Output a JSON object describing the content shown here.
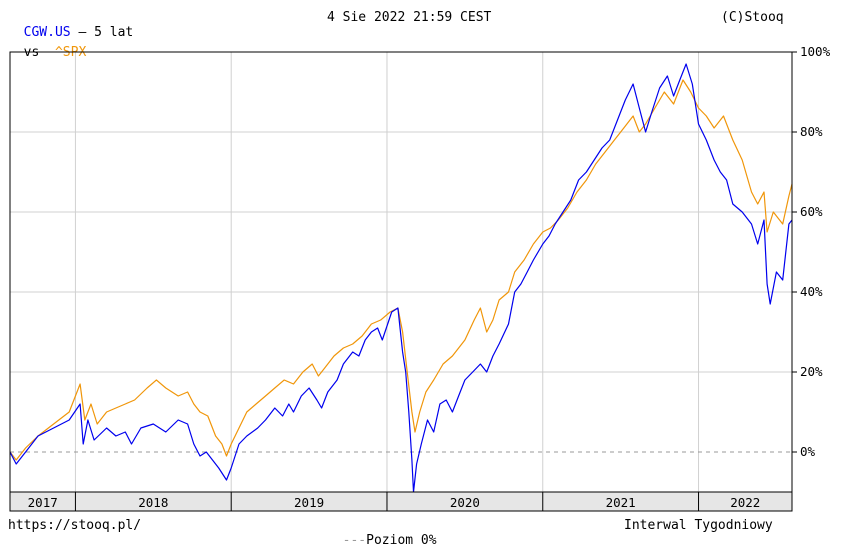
{
  "header": {
    "symbol": "CGW.US",
    "period": " – 5 lat",
    "vs": "vs",
    "benchmark": "^SPX",
    "datetime": "4 Sie 2022 21:59 CEST",
    "copyright": "(C)Stooq"
  },
  "footer": {
    "url": "https://stooq.pl/",
    "zero_dash": "---",
    "zero_label": "Poziom 0%",
    "interval": "Interwal Tygodniowy"
  },
  "colors": {
    "cgw": "#0000ee",
    "spx": "#f0960a",
    "grid": "#d0d0d0",
    "zero": "#999999"
  },
  "chart_data": {
    "type": "line",
    "ylim": [
      -10,
      100
    ],
    "y_ticks": [
      0,
      20,
      40,
      60,
      80,
      100
    ],
    "y_tick_labels": [
      "0%",
      "20%",
      "40%",
      "60%",
      "80%",
      "100%"
    ],
    "x_year_labels": [
      "2017",
      "2018",
      "2019",
      "2020",
      "2021",
      "2022"
    ],
    "x_year_boundaries": [
      2017.0,
      2018.0,
      2019.0,
      2020.0,
      2021.0,
      2022.0
    ],
    "xlim": [
      2017.58,
      2022.6
    ],
    "zero_line": 0,
    "grid": true,
    "series": [
      {
        "name": "CGW.US",
        "color": "#0000ee",
        "points": [
          [
            2017.58,
            0
          ],
          [
            2017.62,
            -3
          ],
          [
            2017.68,
            0
          ],
          [
            2017.76,
            4
          ],
          [
            2017.86,
            6
          ],
          [
            2017.96,
            8
          ],
          [
            2018.03,
            12
          ],
          [
            2018.05,
            2
          ],
          [
            2018.08,
            8
          ],
          [
            2018.12,
            3
          ],
          [
            2018.2,
            6
          ],
          [
            2018.26,
            4
          ],
          [
            2018.32,
            5
          ],
          [
            2018.36,
            2
          ],
          [
            2018.42,
            6
          ],
          [
            2018.5,
            7
          ],
          [
            2018.58,
            5
          ],
          [
            2018.66,
            8
          ],
          [
            2018.72,
            7
          ],
          [
            2018.76,
            2
          ],
          [
            2018.8,
            -1
          ],
          [
            2018.84,
            0
          ],
          [
            2018.88,
            -2
          ],
          [
            2018.92,
            -4
          ],
          [
            2018.97,
            -7
          ],
          [
            2019.0,
            -4
          ],
          [
            2019.05,
            2
          ],
          [
            2019.1,
            4
          ],
          [
            2019.17,
            6
          ],
          [
            2019.22,
            8
          ],
          [
            2019.28,
            11
          ],
          [
            2019.33,
            9
          ],
          [
            2019.37,
            12
          ],
          [
            2019.4,
            10
          ],
          [
            2019.45,
            14
          ],
          [
            2019.5,
            16
          ],
          [
            2019.55,
            13
          ],
          [
            2019.58,
            11
          ],
          [
            2019.62,
            15
          ],
          [
            2019.68,
            18
          ],
          [
            2019.72,
            22
          ],
          [
            2019.78,
            25
          ],
          [
            2019.82,
            24
          ],
          [
            2019.86,
            28
          ],
          [
            2019.9,
            30
          ],
          [
            2019.94,
            31
          ],
          [
            2019.97,
            28
          ],
          [
            2020.03,
            35
          ],
          [
            2020.07,
            36
          ],
          [
            2020.1,
            25
          ],
          [
            2020.12,
            20
          ],
          [
            2020.14,
            10
          ],
          [
            2020.16,
            -2
          ],
          [
            2020.17,
            -10
          ],
          [
            2020.19,
            -3
          ],
          [
            2020.22,
            2
          ],
          [
            2020.26,
            8
          ],
          [
            2020.3,
            5
          ],
          [
            2020.34,
            12
          ],
          [
            2020.38,
            13
          ],
          [
            2020.42,
            10
          ],
          [
            2020.46,
            14
          ],
          [
            2020.5,
            18
          ],
          [
            2020.55,
            20
          ],
          [
            2020.6,
            22
          ],
          [
            2020.64,
            20
          ],
          [
            2020.68,
            24
          ],
          [
            2020.72,
            27
          ],
          [
            2020.78,
            32
          ],
          [
            2020.82,
            40
          ],
          [
            2020.86,
            42
          ],
          [
            2020.9,
            45
          ],
          [
            2020.94,
            48
          ],
          [
            2021.0,
            52
          ],
          [
            2021.04,
            54
          ],
          [
            2021.08,
            57
          ],
          [
            2021.13,
            60
          ],
          [
            2021.18,
            63
          ],
          [
            2021.23,
            68
          ],
          [
            2021.28,
            70
          ],
          [
            2021.33,
            73
          ],
          [
            2021.38,
            76
          ],
          [
            2021.43,
            78
          ],
          [
            2021.48,
            83
          ],
          [
            2021.53,
            88
          ],
          [
            2021.58,
            92
          ],
          [
            2021.62,
            86
          ],
          [
            2021.66,
            80
          ],
          [
            2021.7,
            85
          ],
          [
            2021.75,
            91
          ],
          [
            2021.8,
            94
          ],
          [
            2021.84,
            89
          ],
          [
            2021.88,
            93
          ],
          [
            2021.92,
            97
          ],
          [
            2021.96,
            92
          ],
          [
            2022.0,
            82
          ],
          [
            2022.05,
            78
          ],
          [
            2022.1,
            73
          ],
          [
            2022.14,
            70
          ],
          [
            2022.18,
            68
          ],
          [
            2022.22,
            62
          ],
          [
            2022.28,
            60
          ],
          [
            2022.34,
            57
          ],
          [
            2022.38,
            52
          ],
          [
            2022.42,
            58
          ],
          [
            2022.44,
            42
          ],
          [
            2022.46,
            37
          ],
          [
            2022.5,
            45
          ],
          [
            2022.54,
            43
          ],
          [
            2022.58,
            57
          ],
          [
            2022.6,
            58
          ]
        ]
      },
      {
        "name": "^SPX",
        "color": "#f0960a",
        "points": [
          [
            2017.58,
            0
          ],
          [
            2017.62,
            -2
          ],
          [
            2017.68,
            1
          ],
          [
            2017.76,
            4
          ],
          [
            2017.86,
            7
          ],
          [
            2017.96,
            10
          ],
          [
            2018.03,
            17
          ],
          [
            2018.06,
            8
          ],
          [
            2018.1,
            12
          ],
          [
            2018.14,
            7
          ],
          [
            2018.2,
            10
          ],
          [
            2018.26,
            11
          ],
          [
            2018.32,
            12
          ],
          [
            2018.38,
            13
          ],
          [
            2018.46,
            16
          ],
          [
            2018.52,
            18
          ],
          [
            2018.58,
            16
          ],
          [
            2018.66,
            14
          ],
          [
            2018.72,
            15
          ],
          [
            2018.76,
            12
          ],
          [
            2018.8,
            10
          ],
          [
            2018.85,
            9
          ],
          [
            2018.9,
            4
          ],
          [
            2018.94,
            2
          ],
          [
            2018.97,
            -1
          ],
          [
            2019.0,
            2
          ],
          [
            2019.05,
            6
          ],
          [
            2019.1,
            10
          ],
          [
            2019.16,
            12
          ],
          [
            2019.22,
            14
          ],
          [
            2019.28,
            16
          ],
          [
            2019.34,
            18
          ],
          [
            2019.4,
            17
          ],
          [
            2019.46,
            20
          ],
          [
            2019.52,
            22
          ],
          [
            2019.56,
            19
          ],
          [
            2019.6,
            21
          ],
          [
            2019.66,
            24
          ],
          [
            2019.72,
            26
          ],
          [
            2019.78,
            27
          ],
          [
            2019.84,
            29
          ],
          [
            2019.9,
            32
          ],
          [
            2019.96,
            33
          ],
          [
            2020.02,
            35
          ],
          [
            2020.07,
            36
          ],
          [
            2020.1,
            30
          ],
          [
            2020.13,
            20
          ],
          [
            2020.16,
            10
          ],
          [
            2020.18,
            5
          ],
          [
            2020.21,
            10
          ],
          [
            2020.25,
            15
          ],
          [
            2020.3,
            18
          ],
          [
            2020.36,
            22
          ],
          [
            2020.42,
            24
          ],
          [
            2020.5,
            28
          ],
          [
            2020.56,
            33
          ],
          [
            2020.6,
            36
          ],
          [
            2020.64,
            30
          ],
          [
            2020.68,
            33
          ],
          [
            2020.72,
            38
          ],
          [
            2020.78,
            40
          ],
          [
            2020.82,
            45
          ],
          [
            2020.88,
            48
          ],
          [
            2020.94,
            52
          ],
          [
            2021.0,
            55
          ],
          [
            2021.05,
            56
          ],
          [
            2021.1,
            58
          ],
          [
            2021.16,
            61
          ],
          [
            2021.22,
            65
          ],
          [
            2021.28,
            68
          ],
          [
            2021.34,
            72
          ],
          [
            2021.4,
            75
          ],
          [
            2021.46,
            78
          ],
          [
            2021.52,
            81
          ],
          [
            2021.58,
            84
          ],
          [
            2021.62,
            80
          ],
          [
            2021.66,
            82
          ],
          [
            2021.72,
            86
          ],
          [
            2021.78,
            90
          ],
          [
            2021.84,
            87
          ],
          [
            2021.9,
            93
          ],
          [
            2021.95,
            90
          ],
          [
            2022.0,
            86
          ],
          [
            2022.05,
            84
          ],
          [
            2022.1,
            81
          ],
          [
            2022.16,
            84
          ],
          [
            2022.22,
            78
          ],
          [
            2022.28,
            73
          ],
          [
            2022.34,
            65
          ],
          [
            2022.38,
            62
          ],
          [
            2022.42,
            65
          ],
          [
            2022.44,
            55
          ],
          [
            2022.48,
            60
          ],
          [
            2022.54,
            57
          ],
          [
            2022.58,
            64
          ],
          [
            2022.6,
            67
          ]
        ]
      }
    ]
  }
}
